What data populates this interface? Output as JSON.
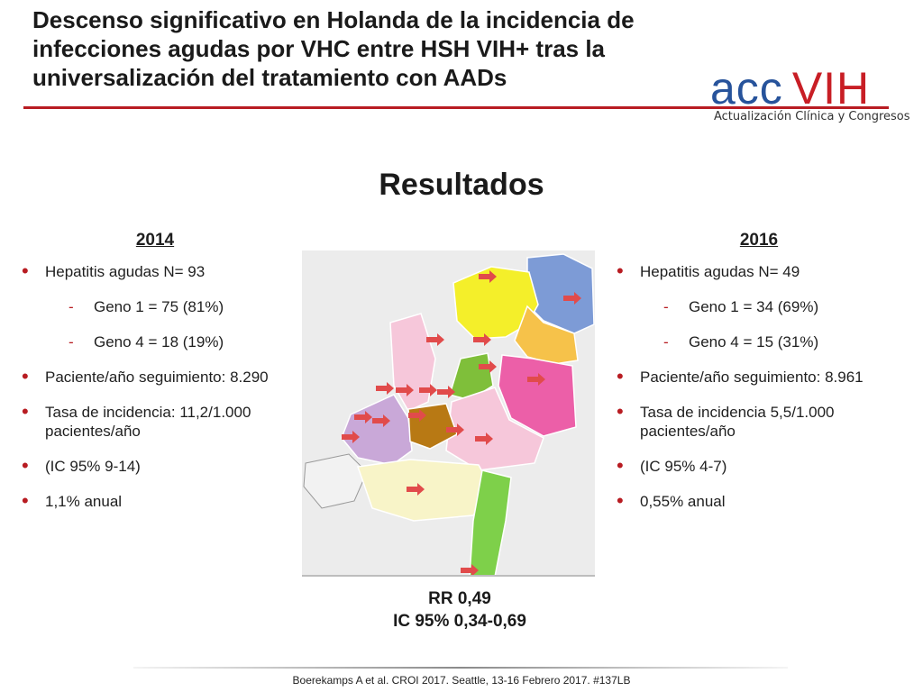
{
  "header": {
    "title": "Descenso significativo en Holanda de la incidencia de infecciones agudas por VHC entre HSH VIH+ tras la universalización del tratamiento con AADs",
    "accent_color": "#b81c22"
  },
  "logo": {
    "acc": "acc",
    "vih": "VIH",
    "subtitle": "Actualización Clínica y Congresos",
    "acc_color": "#27539b",
    "vih_color": "#c81e25"
  },
  "section": {
    "title": "Resultados"
  },
  "left": {
    "year": "2014",
    "items": [
      "Hepatitis agudas N= 93",
      "Geno 1 = 75 (81%)",
      "Geno 4 = 18 (19%)",
      "Paciente/año seguimiento: 8.290",
      "Tasa de incidencia: 11,2/1.000 pacientes/año",
      "(IC 95% 9-14)",
      "1,1% anual"
    ]
  },
  "right": {
    "year": "2016",
    "items": [
      "Hepatitis agudas N= 49",
      "Geno 1 = 34 (69%)",
      "Geno 4 = 15 (31%)",
      "Paciente/año seguimiento: 8.961",
      "Tasa de incidencia 5,5/1.000 pacientes/año",
      "(IC 95% 4-7)",
      "0,55% anual"
    ]
  },
  "result": {
    "rr": "RR 0,49",
    "ci": "IC 95% 0,34-0,69"
  },
  "map": {
    "icon": "netherlands-provinces-map",
    "colors": [
      "#f4ef2a",
      "#7d9bd6",
      "#f6c24a",
      "#7fbf3a",
      "#ec5fa8",
      "#c9a8d8",
      "#b87914",
      "#f6c7da",
      "#f8f4c8",
      "#7ed04a",
      "#e8e8e8"
    ]
  },
  "footer": {
    "citation": "Boerekamps A et al. CROI 2017. Seattle, 13-16 Febrero 2017. #137LB"
  }
}
